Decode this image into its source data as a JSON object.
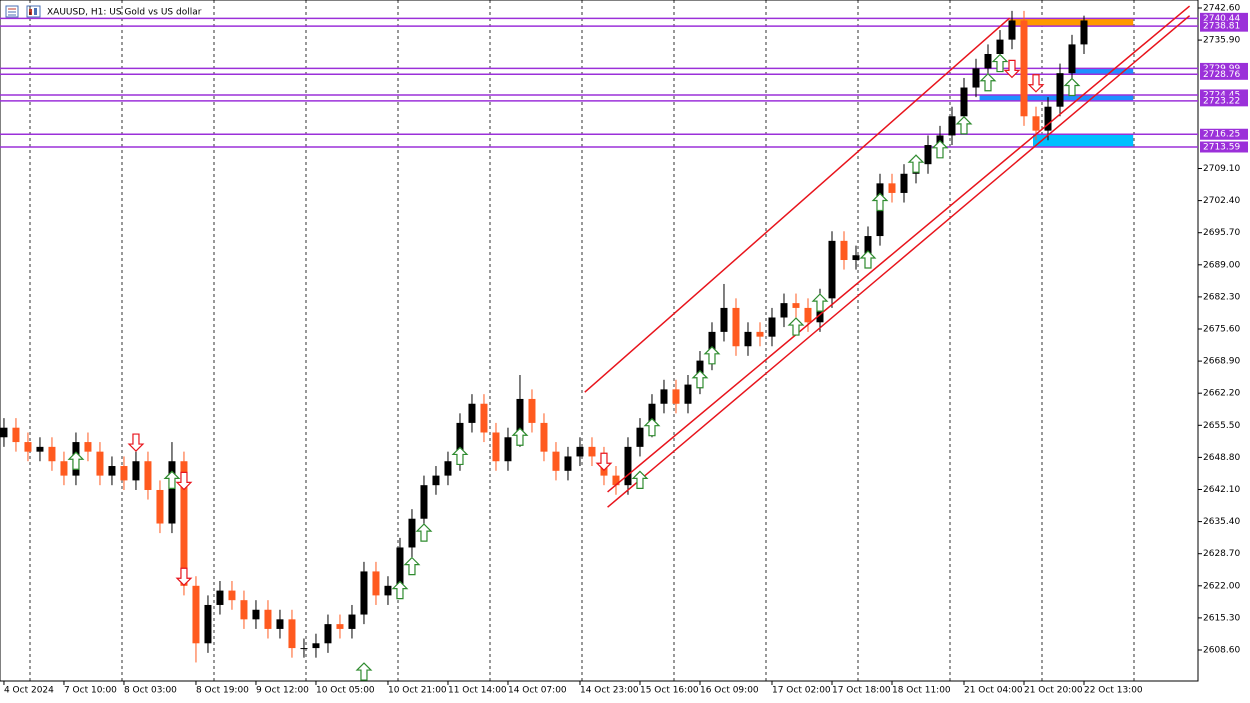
{
  "chart_data": {
    "type": "candlestick",
    "title": "XAUUSD, H1:  US Gold vs US dollar",
    "categories": [
      "4 Oct 2024",
      null,
      null,
      null,
      null,
      "7 Oct 10:00",
      null,
      null,
      null,
      null,
      "8 Oct 03:00",
      null,
      null,
      null,
      null,
      null,
      "8 Oct 19:00",
      null,
      null,
      null,
      null,
      "9 Oct 12:00",
      null,
      null,
      null,
      null,
      "10 Oct 05:00",
      null,
      null,
      null,
      null,
      null,
      "10 Oct 21:00",
      null,
      null,
      null,
      null,
      "11 Oct 14:00",
      null,
      null,
      null,
      null,
      "14 Oct 07:00",
      null,
      null,
      null,
      null,
      null,
      "14 Oct 23:00",
      null,
      null,
      null,
      null,
      "15 Oct 16:00",
      null,
      null,
      null,
      null,
      "16 Oct 09:00",
      null,
      null,
      null,
      null,
      null,
      "17 Oct 02:00",
      null,
      null,
      null,
      null,
      "17 Oct 18:00",
      null,
      null,
      null,
      null,
      "18 Oct 11:00",
      null,
      null,
      null,
      null,
      null,
      "21 Oct 04:00",
      null,
      null,
      null,
      null,
      "21 Oct 20:00",
      null,
      null,
      null,
      null,
      "22 Oct 13:00"
    ],
    "open": [
      2653,
      2655,
      2652,
      2650,
      2651,
      2648,
      2645,
      2652,
      2650,
      2645,
      2647,
      2644,
      2648,
      2642,
      2635,
      2648,
      2622,
      2610,
      2618,
      2621,
      2619,
      2615,
      2617,
      2613,
      2615,
      2609,
      2609,
      2610,
      2614,
      2613,
      2616,
      2625,
      2620,
      2622,
      2630,
      2636,
      2643,
      2645,
      2648,
      2656,
      2660,
      2654,
      2648,
      2653,
      2661,
      2656,
      2650,
      2646,
      2649,
      2651,
      2649,
      2645,
      2643,
      2651,
      2655,
      2660,
      2663,
      2660,
      2664,
      2669,
      2675,
      2680,
      2672,
      2675,
      2674,
      2678,
      2681,
      2680,
      2677,
      2682,
      2694,
      2690,
      2691,
      2695,
      2706,
      2704,
      2708,
      2710,
      2714,
      2716,
      2720,
      2726,
      2730,
      2733,
      2736,
      2740,
      2720,
      2717,
      2722,
      2729,
      2735
    ],
    "high": [
      2657,
      2657,
      2654,
      2653,
      2653,
      2650,
      2654,
      2654,
      2652,
      2649,
      2649,
      2650,
      2650,
      2644,
      2652,
      2650,
      2624,
      2620,
      2623,
      2623,
      2621,
      2619,
      2619,
      2617,
      2617,
      2611,
      2612,
      2616,
      2616,
      2618,
      2627,
      2627,
      2624,
      2632,
      2638,
      2645,
      2647,
      2650,
      2658,
      2662,
      2662,
      2656,
      2655,
      2666,
      2663,
      2658,
      2652,
      2651,
      2653,
      2653,
      2651,
      2647,
      2653,
      2657,
      2662,
      2665,
      2665,
      2666,
      2671,
      2677,
      2685,
      2682,
      2677,
      2677,
      2680,
      2683,
      2683,
      2682,
      2684,
      2696,
      2696,
      2693,
      2697,
      2708,
      2708,
      2710,
      2712,
      2716,
      2718,
      2722,
      2728,
      2732,
      2735,
      2738,
      2742,
      2742,
      2722,
      2724,
      2731,
      2737,
      2741
    ],
    "low": [
      2651,
      2650,
      2648,
      2648,
      2646,
      2643,
      2643,
      2648,
      2643,
      2643,
      2642,
      2642,
      2640,
      2633,
      2633,
      2620,
      2606,
      2608,
      2616,
      2617,
      2613,
      2613,
      2611,
      2611,
      2607,
      2607,
      2607,
      2608,
      2611,
      2611,
      2614,
      2618,
      2618,
      2620,
      2628,
      2634,
      2641,
      2643,
      2646,
      2654,
      2652,
      2646,
      2646,
      2651,
      2654,
      2648,
      2644,
      2644,
      2647,
      2647,
      2643,
      2641,
      2641,
      2649,
      2653,
      2658,
      2658,
      2658,
      2662,
      2667,
      2673,
      2670,
      2670,
      2672,
      2672,
      2676,
      2678,
      2675,
      2675,
      2680,
      2688,
      2688,
      2689,
      2693,
      2702,
      2702,
      2706,
      2708,
      2712,
      2714,
      2718,
      2724,
      2728,
      2731,
      2734,
      2718,
      2715,
      2715,
      2720,
      2727,
      2733
    ],
    "close": [
      2655,
      2652,
      2650,
      2651,
      2648,
      2645,
      2652,
      2650,
      2645,
      2647,
      2644,
      2648,
      2642,
      2635,
      2648,
      2622,
      2610,
      2618,
      2621,
      2619,
      2615,
      2617,
      2613,
      2615,
      2609,
      2609,
      2610,
      2614,
      2613,
      2616,
      2625,
      2620,
      2622,
      2630,
      2636,
      2643,
      2645,
      2648,
      2656,
      2660,
      2654,
      2648,
      2653,
      2661,
      2656,
      2650,
      2646,
      2649,
      2651,
      2649,
      2645,
      2643,
      2651,
      2655,
      2660,
      2663,
      2660,
      2664,
      2669,
      2675,
      2680,
      2672,
      2675,
      2674,
      2678,
      2681,
      2680,
      2677,
      2682,
      2694,
      2690,
      2691,
      2695,
      2706,
      2704,
      2708,
      2710,
      2714,
      2716,
      2720,
      2726,
      2730,
      2733,
      2736,
      2740,
      2720,
      2717,
      2722,
      2729,
      2735,
      2740
    ],
    "up_color": "#000000",
    "down_color": "#ff5a1f",
    "xlim": [
      -0.33,
      99.5
    ],
    "ylim": [
      2602.13,
      2744.27
    ],
    "yticks": [
      {
        "value": 2742.6,
        "label": "2742.60"
      },
      {
        "value": 2735.9,
        "label": "2735.90"
      },
      {
        "value": 2709.1,
        "label": "2709.10"
      },
      {
        "value": 2702.4,
        "label": "2702.40"
      },
      {
        "value": 2695.7,
        "label": "2695.70"
      },
      {
        "value": 2689,
        "label": "2689.00"
      },
      {
        "value": 2682.3,
        "label": "2682.30"
      },
      {
        "value": 2675.6,
        "label": "2675.60"
      },
      {
        "value": 2668.9,
        "label": "2668.90"
      },
      {
        "value": 2662.2,
        "label": "2662.20"
      },
      {
        "value": 2655.5,
        "label": "2655.50"
      },
      {
        "value": 2648.8,
        "label": "2648.80"
      },
      {
        "value": 2642.1,
        "label": "2642.10"
      },
      {
        "value": 2635.4,
        "label": "2635.40"
      },
      {
        "value": 2628.7,
        "label": "2628.70"
      },
      {
        "value": 2622,
        "label": "2622.00"
      },
      {
        "value": 2615.3,
        "label": "2615.30"
      },
      {
        "value": 2608.6,
        "label": "2608.60"
      }
    ],
    "grid": true,
    "levels": {
      "color": "#9b30d9",
      "values": [
        2740.44,
        2738.81,
        2729.99,
        2728.76,
        2724.45,
        2723.22,
        2716.25,
        2713.59
      ]
    },
    "zones": [
      {
        "color": "#ff9900",
        "x": [
          83.8,
          94.1
        ],
        "y": [
          2738.81,
          2740.44
        ]
      },
      {
        "color": "#1e90ff",
        "x": [
          88.8,
          94.1
        ],
        "y": [
          2728.76,
          2729.99
        ]
      },
      {
        "color": "#1e90ff",
        "x": [
          81.3,
          94.1
        ],
        "y": [
          2723.22,
          2724.45
        ]
      },
      {
        "color": "#00bfff",
        "x": [
          85.75,
          94.1
        ],
        "y": [
          2713.59,
          2716.25
        ]
      }
    ],
    "trendlines": {
      "color": "#e8141c",
      "lines": [
        {
          "x": [
            48.4,
            83.8
          ],
          "y": [
            2662.4,
            2740.5
          ]
        },
        {
          "x": [
            50.3,
            98.8
          ],
          "y": [
            2641.6,
            2743.0
          ]
        },
        {
          "x": [
            50.3,
            98.8
          ],
          "y": [
            2638.4,
            2741.0
          ]
        }
      ]
    },
    "buy_signals": {
      "color": "#2e8b2e",
      "x": [
        6,
        14,
        30,
        33,
        34,
        35,
        38,
        43,
        53,
        54,
        58,
        59,
        66,
        68,
        72,
        73,
        76,
        78,
        80,
        82,
        83,
        89
      ],
      "y": [
        2648,
        2644,
        2604,
        2621,
        2626,
        2633,
        2649,
        2653,
        2644,
        2655,
        2665,
        2670,
        2676,
        2681,
        2690,
        2702,
        2710,
        2713,
        2718,
        2727,
        2731,
        2726
      ]
    },
    "sell_signals": {
      "color": "#e8141c",
      "x": [
        11,
        15,
        15,
        50,
        84,
        86
      ],
      "y": [
        2652,
        2644,
        2624,
        2648,
        2730,
        2727
      ]
    }
  }
}
